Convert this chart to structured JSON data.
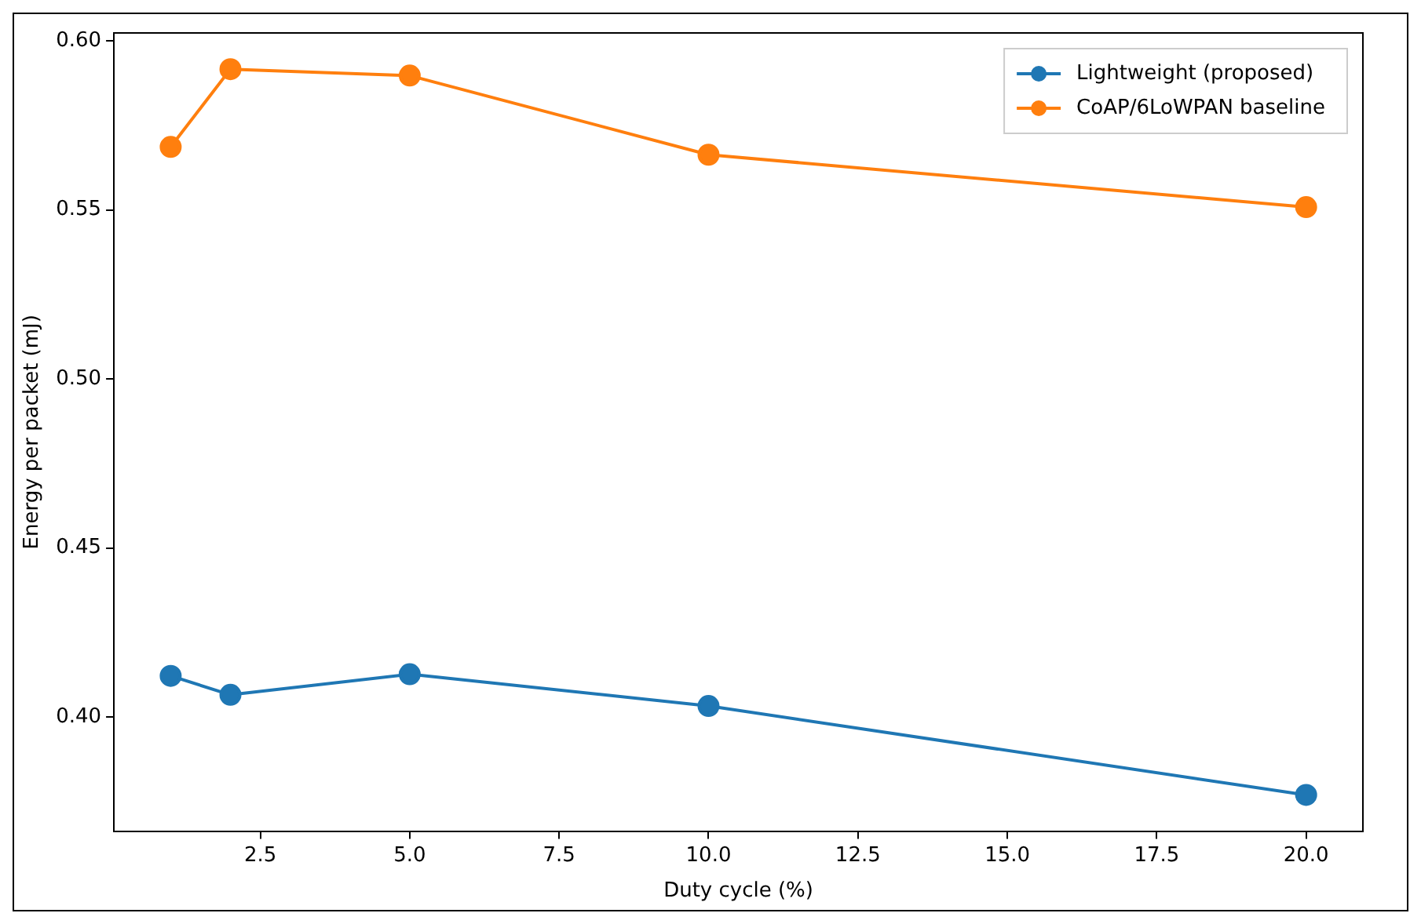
{
  "chart_data": {
    "type": "line",
    "xlabel": "Duty cycle (%)",
    "ylabel": "Energy per packet (mJ)",
    "x": [
      1,
      2,
      5,
      10,
      20
    ],
    "series": [
      {
        "name": "Lightweight (proposed)",
        "color": "#1f77b4",
        "values": [
          0.4122,
          0.4066,
          0.4127,
          0.4033,
          0.377
        ]
      },
      {
        "name": "CoAP/6LoWPAN baseline",
        "color": "#ff7f0e",
        "values": [
          0.5686,
          0.5916,
          0.5897,
          0.5663,
          0.5508
        ]
      }
    ],
    "xlim": [
      0.05,
      20.95
    ],
    "xticks": [
      {
        "value": 2.5,
        "label": "2.5"
      },
      {
        "value": 5,
        "label": "5.0"
      },
      {
        "value": 7.5,
        "label": "7.5"
      },
      {
        "value": 10,
        "label": "10.0"
      },
      {
        "value": 12.5,
        "label": "12.5"
      },
      {
        "value": 15,
        "label": "15.0"
      },
      {
        "value": 17.5,
        "label": "17.5"
      },
      {
        "value": 20,
        "label": "20.0"
      }
    ],
    "ylim": [
      0.3663,
      0.6023
    ],
    "yticks": [
      {
        "value": 0.4,
        "label": "0.40"
      },
      {
        "value": 0.45,
        "label": "0.45"
      },
      {
        "value": 0.5,
        "label": "0.50"
      },
      {
        "value": 0.55,
        "label": "0.55"
      },
      {
        "value": 0.6,
        "label": "0.60"
      }
    ],
    "grid": false,
    "legend": "top right",
    "marker": "circle",
    "line_style": "solid"
  }
}
